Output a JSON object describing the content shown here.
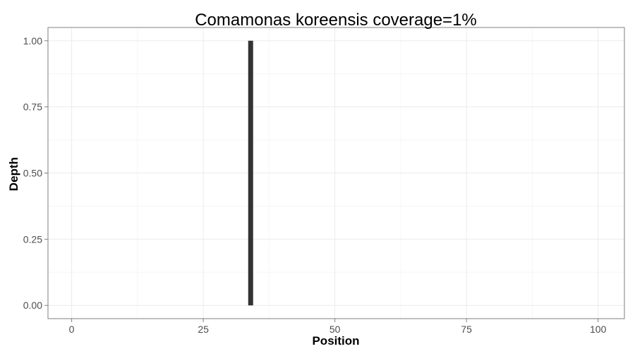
{
  "chart_data": {
    "type": "bar",
    "title": "Comamonas koreensis coverage=1%",
    "xlabel": "Position",
    "ylabel": "Depth",
    "xlim": [
      -4.5,
      105
    ],
    "ylim": [
      -0.05,
      1.05
    ],
    "x_ticks": [
      0,
      25,
      50,
      75,
      100
    ],
    "x_tick_labels": [
      "0",
      "25",
      "50",
      "75",
      "100"
    ],
    "y_ticks": [
      0,
      0.25,
      0.5,
      0.75,
      1.0
    ],
    "y_tick_labels": [
      "0.00",
      "0.25",
      "0.50",
      "0.75",
      "1.00"
    ],
    "grid": true,
    "legend": "none",
    "bar_color": "#333333",
    "x": [
      34
    ],
    "values": [
      1
    ]
  }
}
